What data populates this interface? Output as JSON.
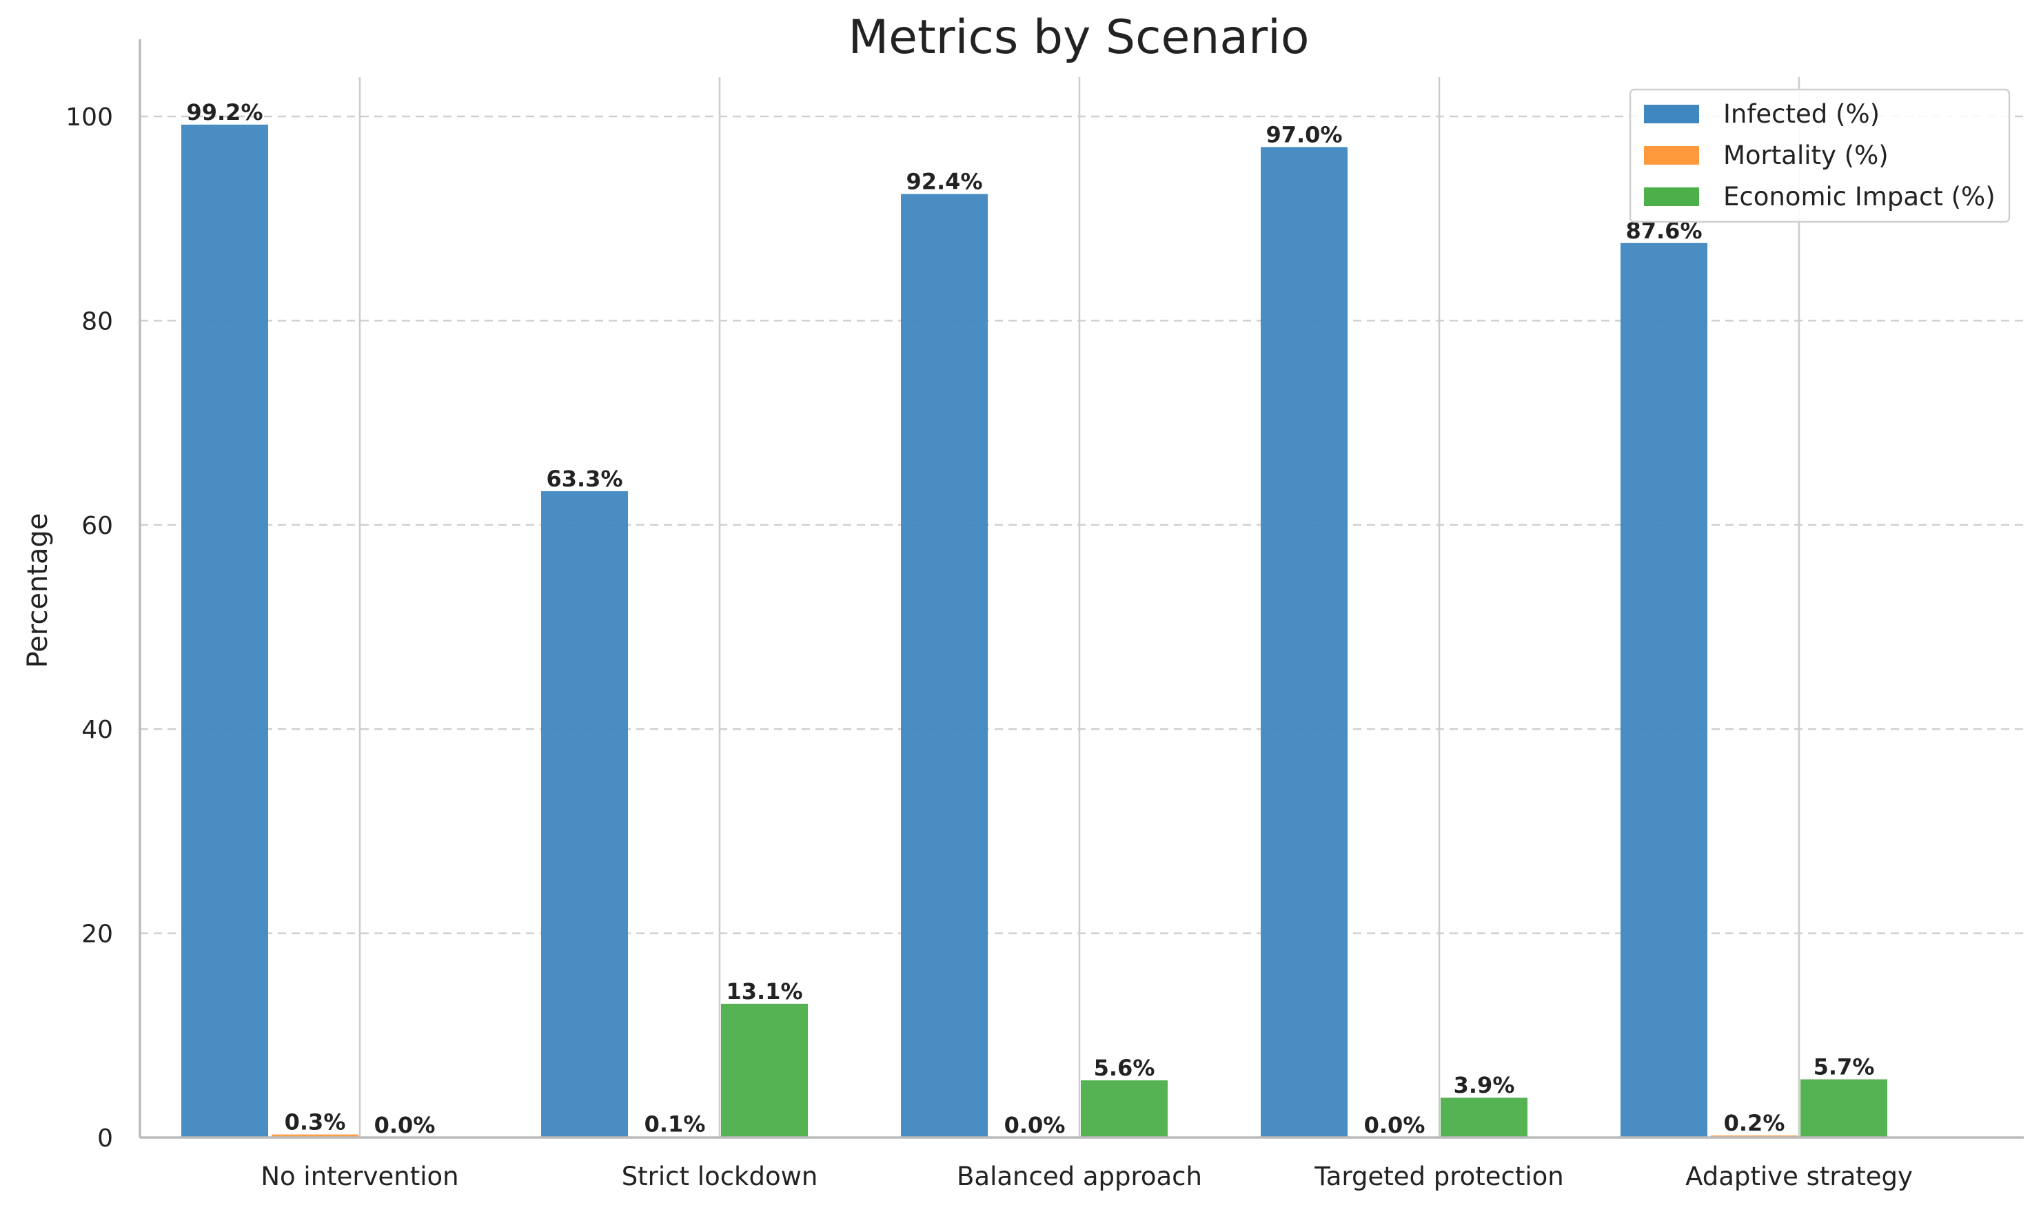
{
  "chart_data": {
    "type": "bar",
    "title": "Metrics by Scenario",
    "xlabel": "",
    "ylabel": "Percentage",
    "ylim": [
      0,
      104
    ],
    "yticks": [
      0,
      20,
      40,
      60,
      80,
      100
    ],
    "grid": "y dashed; vertical separators between groups",
    "legend_position": "top-right",
    "categories": [
      "No intervention",
      "Strict lockdown",
      "Balanced approach",
      "Targeted protection",
      "Adaptive strategy"
    ],
    "series": [
      {
        "name": "Infected (%)",
        "color": "#3f87c0",
        "values": [
          99.2,
          63.3,
          92.4,
          97.0,
          87.6
        ],
        "labels": [
          "99.2%",
          "63.3%",
          "92.4%",
          "97.0%",
          "87.6%"
        ]
      },
      {
        "name": "Mortality (%)",
        "color": "#ff9a3c",
        "values": [
          0.3,
          0.1,
          0.0,
          0.0,
          0.2
        ],
        "labels": [
          "0.3%",
          "0.1%",
          "0.0%",
          "0.0%",
          "0.2%"
        ]
      },
      {
        "name": "Economic Impact (%)",
        "color": "#4daf4a",
        "values": [
          0.0,
          13.1,
          5.6,
          3.9,
          5.7
        ],
        "labels": [
          "0.0%",
          "13.1%",
          "5.6%",
          "3.9%",
          "5.7%"
        ]
      }
    ]
  }
}
